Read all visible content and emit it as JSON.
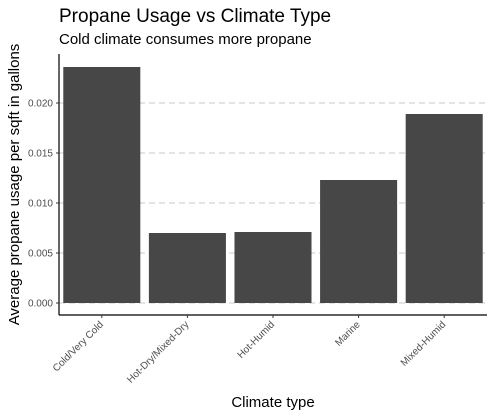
{
  "chart_data": {
    "type": "bar",
    "title": "Propane Usage vs Climate Type",
    "subtitle": "Cold climate consumes more propane",
    "xlabel": "Climate type",
    "ylabel": "Average propane usage per sqft in gallons",
    "categories": [
      "Cold/Very Cold",
      "Hot-Dry/Mixed-Dry",
      "Hot-Humid",
      "Marine",
      "Mixed-Humid"
    ],
    "values": [
      0.0236,
      0.007,
      0.0071,
      0.0123,
      0.0189
    ],
    "ylim": [
      0,
      0.0245
    ],
    "yticks": [
      0.0,
      0.005,
      0.01,
      0.015,
      0.02
    ],
    "ytick_labels": [
      "0.000",
      "0.005",
      "0.010",
      "0.015",
      "0.020"
    ],
    "grid": "horizontal-dashed",
    "legend": "none",
    "bar_color": "#474747",
    "grid_color": "#d3d3d3",
    "axis_color": "#000000"
  }
}
